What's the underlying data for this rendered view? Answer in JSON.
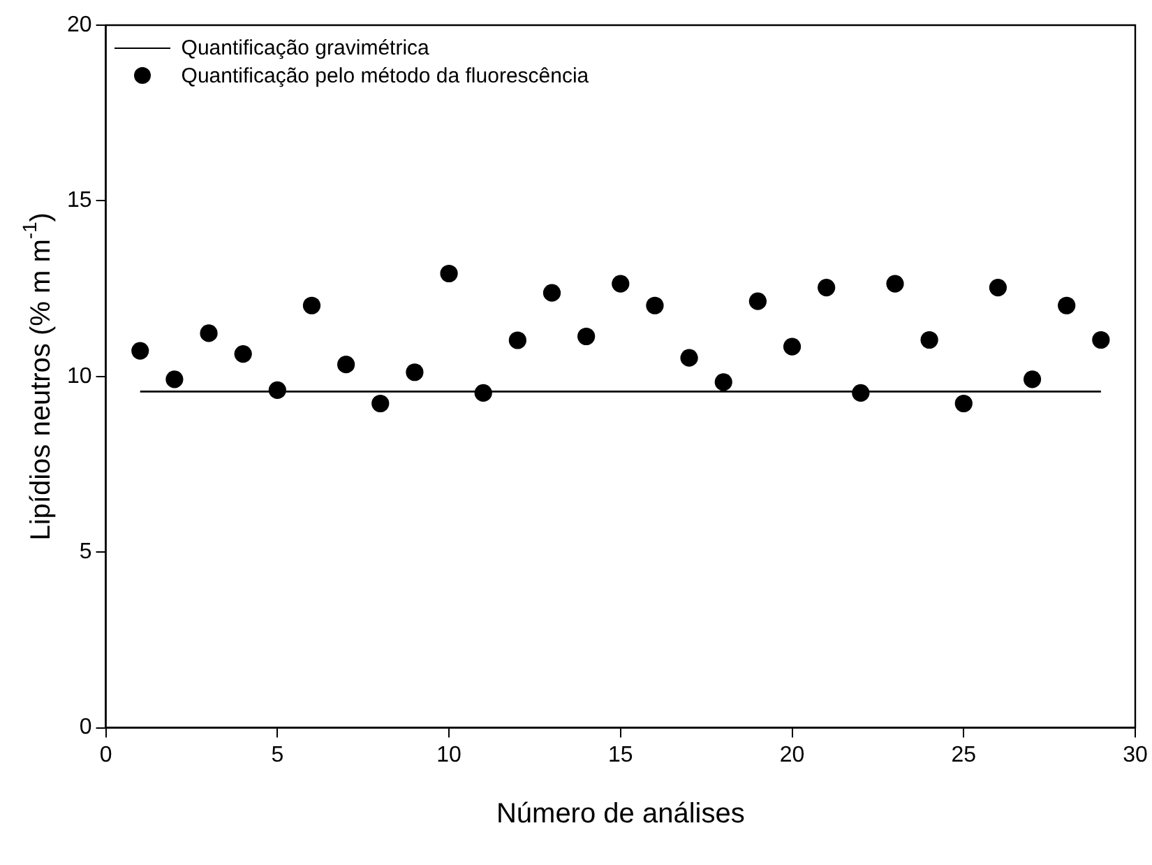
{
  "chart_data": {
    "type": "scatter",
    "xlabel": "Número de análises",
    "ylabel": "Lipídios neutros (% m m$^{-1}$)",
    "xlim": [
      0,
      30
    ],
    "xticks": [
      0,
      5,
      10,
      15,
      20,
      25,
      30
    ],
    "ylim": [
      0,
      20
    ],
    "yticks": [
      0,
      5,
      10,
      15,
      20
    ],
    "grid": false,
    "legend": "top left",
    "series": [
      {
        "name": "Quantificação gravimétrica",
        "type": "line",
        "marker": "none",
        "line_style": "solid",
        "color": "#000000",
        "x": [
          1,
          29
        ],
        "values": [
          9.57,
          9.57
        ]
      },
      {
        "name": "Quantificação pelo método da fluorescência",
        "type": "scatter",
        "marker": "circle",
        "color": "#000000",
        "x": [
          1,
          2,
          3,
          4,
          5,
          6,
          7,
          8,
          9,
          10,
          11,
          12,
          13,
          14,
          15,
          16,
          17,
          18,
          19,
          20,
          21,
          22,
          23,
          24,
          25,
          26,
          27,
          28,
          29
        ],
        "values": [
          10.73,
          9.92,
          11.23,
          10.64,
          9.61,
          12.02,
          10.34,
          9.23,
          10.12,
          12.93,
          9.53,
          11.03,
          12.38,
          11.14,
          12.64,
          12.02,
          10.53,
          9.84,
          12.14,
          10.85,
          12.53,
          9.53,
          12.64,
          11.04,
          9.23,
          12.53,
          9.92,
          12.02,
          11.04
        ]
      }
    ]
  }
}
